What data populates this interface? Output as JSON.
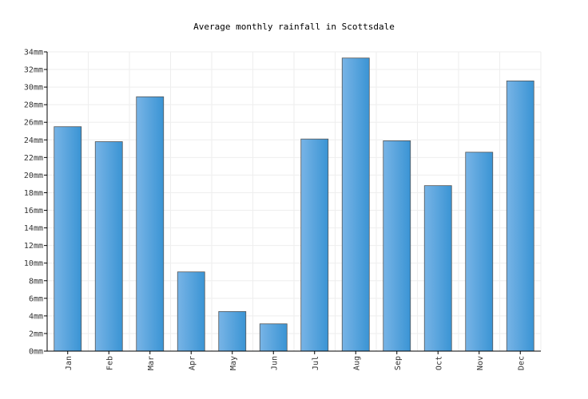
{
  "chart_data": {
    "type": "bar",
    "title": "Average monthly rainfall in Scottsdale",
    "xlabel": "",
    "ylabel": "",
    "categories": [
      "Jan",
      "Feb",
      "Mar",
      "Apr",
      "May",
      "Jun",
      "Jul",
      "Aug",
      "Sep",
      "Oct",
      "Nov",
      "Dec"
    ],
    "values": [
      25.5,
      23.8,
      28.9,
      9.0,
      4.5,
      3.1,
      24.1,
      33.3,
      23.9,
      18.8,
      22.6,
      30.7
    ],
    "unit": "mm",
    "ylim": [
      0,
      34
    ],
    "yticks": [
      0,
      2,
      4,
      6,
      8,
      10,
      12,
      14,
      16,
      18,
      20,
      22,
      24,
      26,
      28,
      30,
      32,
      34
    ],
    "grid": true,
    "legend": "none",
    "colors": {
      "bar_light": "#78b4e6",
      "bar_dark": "#3a94d4",
      "bar_stroke": "#555555",
      "grid": "#eeeeee"
    }
  }
}
